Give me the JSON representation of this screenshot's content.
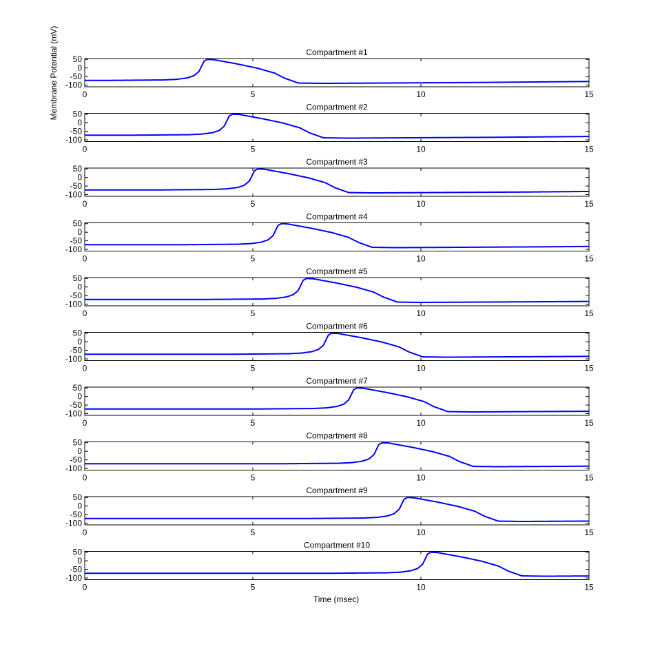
{
  "figure": {
    "ylabel": "Membrane Potential (mV)",
    "xlabel": "Time (msec)"
  },
  "style": {
    "line_color": "#0000ff",
    "axes_color": "#000000",
    "background": "#ffffff"
  },
  "chart_data": {
    "type": "line",
    "xlabel": "Time (msec)",
    "ylabel": "Membrane Potential (mV)",
    "xlim": [
      0,
      15
    ],
    "ylim": [
      -110,
      55
    ],
    "xticks": [
      0,
      5,
      10,
      15
    ],
    "yticks": [
      50,
      0,
      -50,
      -100
    ],
    "ytick_labels": [
      "50",
      "0",
      "-50",
      "-100"
    ],
    "grid": false,
    "panels": [
      {
        "title": "Compartment #1",
        "onset": 3.55
      },
      {
        "title": "Compartment #2",
        "onset": 4.3
      },
      {
        "title": "Compartment #3",
        "onset": 5.05
      },
      {
        "title": "Compartment #4",
        "onset": 5.75
      },
      {
        "title": "Compartment #5",
        "onset": 6.5
      },
      {
        "title": "Compartment #6",
        "onset": 7.25
      },
      {
        "title": "Compartment #7",
        "onset": 8.0
      },
      {
        "title": "Compartment #8",
        "onset": 8.75
      },
      {
        "title": "Compartment #9",
        "onset": 9.5
      },
      {
        "title": "Compartment #10",
        "onset": 10.2
      }
    ],
    "waveform": {
      "description": "relative time offsets from onset (msec) and membrane potential (mV)",
      "rest": -73,
      "points": [
        [
          -3.0,
          -73
        ],
        [
          -1.2,
          -70
        ],
        [
          -0.8,
          -66
        ],
        [
          -0.5,
          -58
        ],
        [
          -0.3,
          -45
        ],
        [
          -0.15,
          -20
        ],
        [
          0.0,
          40
        ],
        [
          0.1,
          50
        ],
        [
          0.3,
          48
        ],
        [
          1.0,
          23
        ],
        [
          1.6,
          -2
        ],
        [
          2.1,
          -30
        ],
        [
          2.4,
          -60
        ],
        [
          2.8,
          -88
        ],
        [
          3.5,
          -90
        ],
        [
          8.0,
          -85
        ],
        [
          12.0,
          -78
        ]
      ]
    }
  }
}
